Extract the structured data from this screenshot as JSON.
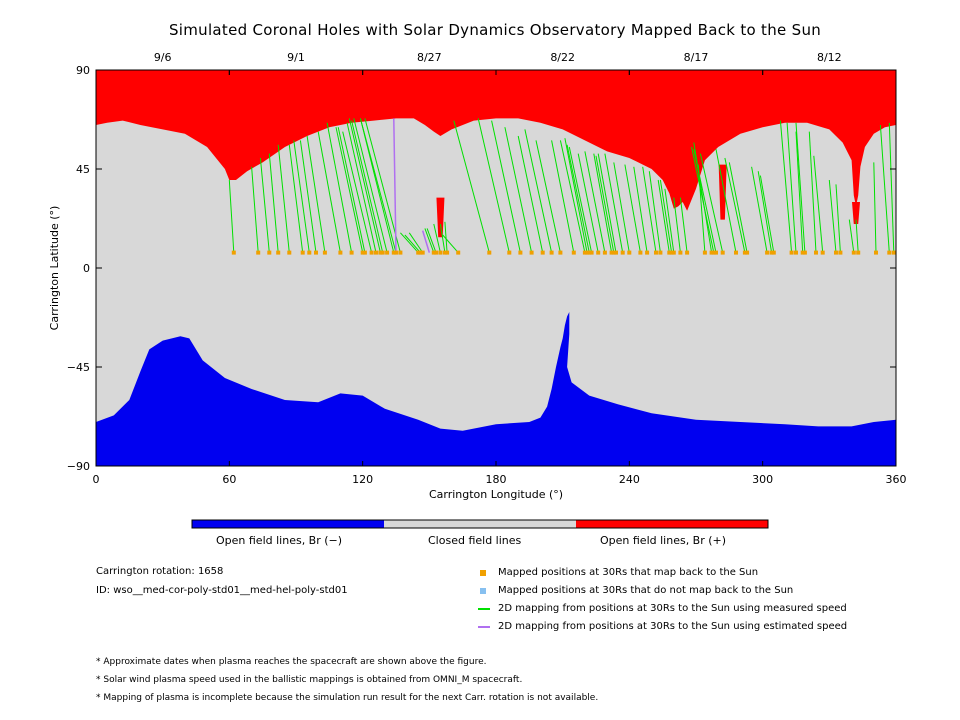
{
  "chart_data": {
    "type": "scatter",
    "title": "Simulated Coronal Holes with Solar Dynamics Observatory Mapped Back to the Sun",
    "xlabel": "Carrington Longitude (°)",
    "ylabel": "Carrington Latitude (°)",
    "xlim": [
      0,
      360
    ],
    "ylim": [
      -90,
      90
    ],
    "xticks": [
      "0",
      "60",
      "120",
      "180",
      "240",
      "300",
      "360"
    ],
    "yticks": [
      "90",
      "45",
      "0",
      "−45",
      "−90"
    ],
    "top_axis_dates": [
      {
        "date": "9/6",
        "lon": 30
      },
      {
        "date": "9/1",
        "lon": 90
      },
      {
        "date": "8/27",
        "lon": 150
      },
      {
        "date": "8/22",
        "lon": 210
      },
      {
        "date": "8/17",
        "lon": 270
      },
      {
        "date": "8/12",
        "lon": 330
      }
    ],
    "colors": {
      "open_negative": "#0000f0",
      "closed": "#d8d8d8",
      "open_positive": "#ff0000",
      "mapped_point": "#f0a000",
      "unmapped_point": "#87c0f0",
      "measured_line": "#00e000",
      "estimated_line": "#b070f0"
    },
    "north_boundary": [
      [
        0,
        65
      ],
      [
        5,
        66
      ],
      [
        12,
        67
      ],
      [
        20,
        65
      ],
      [
        30,
        63
      ],
      [
        40,
        61
      ],
      [
        50,
        55
      ],
      [
        58,
        45
      ],
      [
        60,
        40
      ],
      [
        63,
        40
      ],
      [
        68,
        44
      ],
      [
        75,
        48
      ],
      [
        85,
        55
      ],
      [
        95,
        60
      ],
      [
        105,
        64
      ],
      [
        115,
        66
      ],
      [
        125,
        67
      ],
      [
        135,
        68
      ],
      [
        143,
        68
      ],
      [
        148,
        65
      ],
      [
        152,
        62
      ],
      [
        155,
        60
      ],
      [
        160,
        63
      ],
      [
        170,
        67
      ],
      [
        180,
        68
      ],
      [
        190,
        68
      ],
      [
        200,
        66
      ],
      [
        210,
        63
      ],
      [
        220,
        58
      ],
      [
        230,
        53
      ],
      [
        240,
        50
      ],
      [
        250,
        45
      ],
      [
        255,
        40
      ],
      [
        258,
        34
      ],
      [
        260,
        27
      ],
      [
        262,
        28
      ],
      [
        264,
        30
      ],
      [
        266,
        26
      ],
      [
        270,
        36
      ],
      [
        274,
        49
      ],
      [
        280,
        55
      ],
      [
        290,
        61
      ],
      [
        300,
        64
      ],
      [
        310,
        66
      ],
      [
        320,
        66
      ],
      [
        330,
        63
      ],
      [
        336,
        57
      ],
      [
        338,
        53
      ],
      [
        340,
        49
      ],
      [
        341,
        33
      ],
      [
        342,
        28
      ],
      [
        343,
        33
      ],
      [
        344,
        46
      ],
      [
        346,
        55
      ],
      [
        350,
        61
      ],
      [
        355,
        64
      ],
      [
        360,
        65
      ]
    ],
    "north_spikes": [
      {
        "lon": 155,
        "lat_top": 32,
        "lat_bottom": 14
      },
      {
        "lon": 282,
        "lat_top": 47,
        "lat_bottom": 22
      },
      {
        "lon": 342,
        "lat_top": 30,
        "lat_bottom": 20
      }
    ],
    "south_boundary": [
      [
        0,
        -70
      ],
      [
        8,
        -67
      ],
      [
        15,
        -60
      ],
      [
        20,
        -47
      ],
      [
        24,
        -37
      ],
      [
        30,
        -33
      ],
      [
        38,
        -31
      ],
      [
        42,
        -32
      ],
      [
        48,
        -42
      ],
      [
        58,
        -50
      ],
      [
        70,
        -55
      ],
      [
        85,
        -60
      ],
      [
        100,
        -61
      ],
      [
        110,
        -57
      ],
      [
        120,
        -58
      ],
      [
        130,
        -64
      ],
      [
        145,
        -69
      ],
      [
        155,
        -73
      ],
      [
        165,
        -74
      ],
      [
        180,
        -71
      ],
      [
        195,
        -70
      ],
      [
        200,
        -68
      ],
      [
        203,
        -63
      ],
      [
        205,
        -55
      ],
      [
        207,
        -45
      ],
      [
        209,
        -36
      ],
      [
        210,
        -32
      ],
      [
        211,
        -26
      ],
      [
        212,
        -22
      ],
      [
        213,
        -20
      ],
      [
        213,
        -30
      ],
      [
        212,
        -45
      ],
      [
        214,
        -52
      ],
      [
        222,
        -58
      ],
      [
        235,
        -62
      ],
      [
        250,
        -66
      ],
      [
        270,
        -69
      ],
      [
        290,
        -70
      ],
      [
        310,
        -71
      ],
      [
        325,
        -72
      ],
      [
        340,
        -72
      ],
      [
        350,
        -70
      ],
      [
        360,
        -69
      ]
    ],
    "mapped_positions_lat": 7,
    "mapped_positions": [
      [
        62,
        40
      ],
      [
        73,
        46
      ],
      [
        78,
        50
      ],
      [
        82,
        52
      ],
      [
        87,
        56
      ],
      [
        93,
        56
      ],
      [
        96,
        58
      ],
      [
        99,
        58
      ],
      [
        103,
        60
      ],
      [
        110,
        62
      ],
      [
        115,
        66
      ],
      [
        120,
        64
      ],
      [
        121,
        64
      ],
      [
        124,
        62
      ],
      [
        126,
        66
      ],
      [
        128,
        68
      ],
      [
        129,
        67
      ],
      [
        131,
        68
      ],
      [
        134,
        68
      ],
      [
        135,
        68
      ],
      [
        137,
        68
      ],
      [
        145,
        16
      ],
      [
        146,
        15
      ],
      [
        147,
        16
      ],
      [
        152,
        18
      ],
      [
        153,
        18
      ],
      [
        155,
        20
      ],
      [
        157,
        20
      ],
      [
        158,
        21
      ],
      [
        163,
        15
      ],
      [
        177,
        67
      ],
      [
        186,
        68
      ],
      [
        191,
        67
      ],
      [
        196,
        64
      ],
      [
        201,
        60
      ],
      [
        205,
        63
      ],
      [
        209,
        58
      ],
      [
        215,
        58
      ],
      [
        220,
        58
      ],
      [
        221,
        59
      ],
      [
        222,
        56
      ],
      [
        223,
        55
      ],
      [
        226,
        52
      ],
      [
        229,
        53
      ],
      [
        232,
        52
      ],
      [
        233,
        51
      ],
      [
        234,
        52
      ],
      [
        237,
        52
      ],
      [
        240,
        48
      ],
      [
        245,
        47
      ],
      [
        248,
        46
      ],
      [
        252,
        46
      ],
      [
        254,
        44
      ],
      [
        258,
        40
      ],
      [
        259,
        40
      ],
      [
        260,
        36
      ],
      [
        263,
        32
      ],
      [
        266,
        32
      ],
      [
        274,
        47
      ],
      [
        277,
        57
      ],
      [
        278,
        55
      ],
      [
        279,
        54
      ],
      [
        282,
        52
      ],
      [
        288,
        54
      ],
      [
        292,
        50
      ],
      [
        293,
        48
      ],
      [
        302,
        46
      ],
      [
        304,
        44
      ],
      [
        305,
        42
      ],
      [
        313,
        67
      ],
      [
        315,
        66
      ],
      [
        318,
        62
      ],
      [
        319,
        66
      ],
      [
        324,
        62
      ],
      [
        327,
        51
      ],
      [
        333,
        40
      ],
      [
        335,
        38
      ],
      [
        341,
        22
      ],
      [
        343,
        22
      ],
      [
        351,
        48
      ],
      [
        357,
        65
      ],
      [
        359,
        66
      ]
    ],
    "estimated_mappings": [
      {
        "lon_start": 134,
        "lat_start": 68,
        "lon_end": 135,
        "lat_end": 7
      },
      {
        "lon_start": 147,
        "lat_start": 17,
        "lon_end": 150,
        "lat_end": 7
      }
    ]
  },
  "colorbar": {
    "labels": [
      "Open field lines, Br (−)",
      "Closed field lines",
      "Open field lines, Br (+)"
    ]
  },
  "info": {
    "rotation": "Carrington rotation: 1658",
    "id": "ID: wso__med-cor-poly-std01__med-hel-poly-std01"
  },
  "legend": [
    {
      "label": "Mapped positions at 30Rs that map back to the Sun",
      "kind": "square",
      "color": "#f0a000"
    },
    {
      "label": "Mapped positions at 30Rs that do not map back to the Sun",
      "kind": "square",
      "color": "#87c0f0"
    },
    {
      "label": "2D mapping from positions at 30Rs to the Sun using measured speed",
      "kind": "line",
      "color": "#00e000"
    },
    {
      "label": "2D mapping from positions at 30Rs to the Sun using estimated speed",
      "kind": "line",
      "color": "#b070f0"
    }
  ],
  "notes": [
    "* Approximate dates when plasma reaches the spacecraft are shown above the figure.",
    "* Solar wind plasma speed used in the ballistic mappings is obtained from OMNI_M spacecraft.",
    "* Mapping of plasma is incomplete because the simulation run result for the next Carr. rotation is not available."
  ]
}
